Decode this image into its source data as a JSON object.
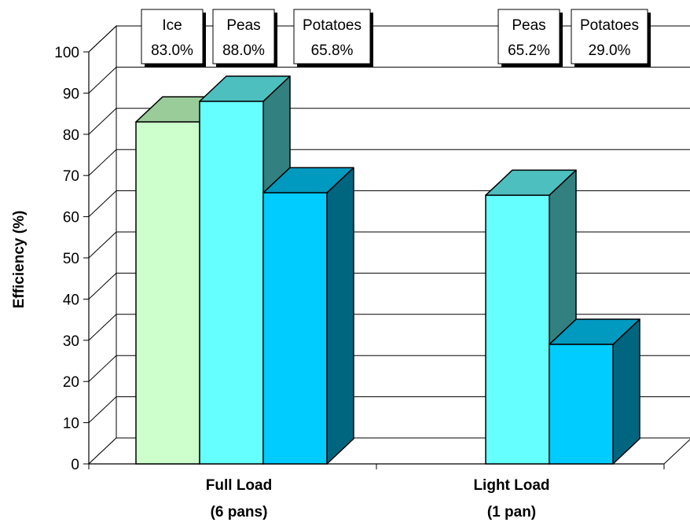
{
  "chart_data": {
    "type": "bar",
    "title": "",
    "xlabel": "",
    "ylabel": "Efficiency (%)",
    "ylim": [
      0,
      100
    ],
    "yticks": [
      "0",
      "10",
      "20",
      "30",
      "40",
      "50",
      "60",
      "70",
      "80",
      "90",
      "100"
    ],
    "grid": true,
    "categories": [
      {
        "line1": "Full Load",
        "line2": "(6 pans)"
      },
      {
        "line1": "Light Load",
        "line2": "(1 pan)"
      }
    ],
    "series": [
      {
        "name": "Ice",
        "values": [
          83.0,
          null
        ],
        "colors": {
          "front": "#ccffcc",
          "top": "#99cc99",
          "side": "#669966"
        }
      },
      {
        "name": "Peas",
        "values": [
          88.0,
          65.2
        ],
        "colors": {
          "front": "#66ffff",
          "top": "#4dbfbf",
          "side": "#338080"
        }
      },
      {
        "name": "Potatoes",
        "values": [
          65.8,
          29.0
        ],
        "colors": {
          "front": "#00ccff",
          "top": "#0099bf",
          "side": "#006680"
        }
      }
    ],
    "data_labels": [
      {
        "series": "Ice",
        "category": 0,
        "name": "Ice",
        "value": "83.0%"
      },
      {
        "series": "Peas",
        "category": 0,
        "name": "Peas",
        "value": "88.0%"
      },
      {
        "series": "Potatoes",
        "category": 0,
        "name": "Potatoes",
        "value": "65.8%"
      },
      {
        "series": "Peas",
        "category": 1,
        "name": "Peas",
        "value": "65.2%"
      },
      {
        "series": "Potatoes",
        "category": 1,
        "name": "Potatoes",
        "value": "29.0%"
      }
    ]
  }
}
